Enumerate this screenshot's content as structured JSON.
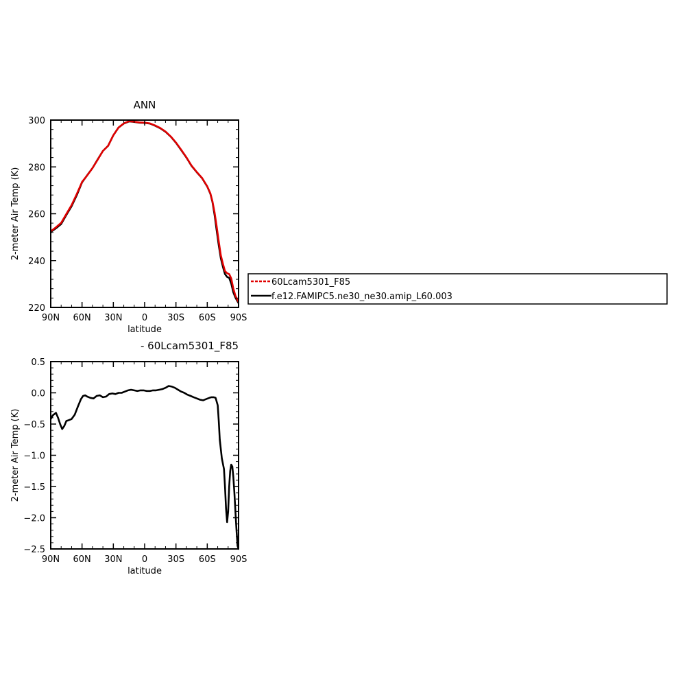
{
  "colors": {
    "series_red": "#e00000",
    "series_black": "#000000",
    "axis": "#000000"
  },
  "chart_data": [
    {
      "type": "line",
      "title": "ANN",
      "xlabel": "latitude",
      "ylabel": "2-meter Air Temp (K)",
      "xlim": [
        90,
        -90
      ],
      "ylim": [
        220,
        300
      ],
      "xticks": [
        {
          "value": 90,
          "label": "90N"
        },
        {
          "value": 60,
          "label": "60N"
        },
        {
          "value": 30,
          "label": "30N"
        },
        {
          "value": 0,
          "label": "0"
        },
        {
          "value": -30,
          "label": "30S"
        },
        {
          "value": -60,
          "label": "60S"
        },
        {
          "value": -90,
          "label": "90S"
        }
      ],
      "yticks": [
        {
          "value": 300,
          "label": "300"
        },
        {
          "value": 280,
          "label": "280"
        },
        {
          "value": 260,
          "label": "260"
        },
        {
          "value": 240,
          "label": "240"
        },
        {
          "value": 220,
          "label": "220"
        }
      ],
      "legend": {
        "placement": "right",
        "entries": [
          "60Lcam5301_F85",
          "f.e12.FAMIPC5.ne30_ne30.amip_L60.003"
        ]
      },
      "series": [
        {
          "name": "f.e12.FAMIPC5.ne30_ne30.amip_L60.003",
          "color": "#000000",
          "dash": "solid",
          "x": [
            90,
            85,
            80,
            75,
            70,
            65,
            60,
            55,
            50,
            45,
            40,
            35,
            30,
            25,
            20,
            15,
            10,
            5,
            0,
            -5,
            -10,
            -15,
            -20,
            -25,
            -30,
            -35,
            -40,
            -45,
            -50,
            -55,
            -60,
            -63,
            -65,
            -67,
            -69,
            -71,
            -73,
            -75,
            -77,
            -79,
            -81,
            -83,
            -85,
            -87,
            -90
          ],
          "values": [
            252.2,
            253.8,
            255.6,
            259.5,
            263.2,
            268.0,
            273.4,
            276.5,
            279.5,
            283.2,
            286.8,
            289.0,
            293.5,
            296.8,
            298.5,
            299.4,
            299.2,
            298.9,
            298.8,
            298.5,
            297.6,
            296.5,
            295.0,
            292.9,
            290.3,
            287.2,
            284.0,
            280.4,
            277.7,
            275.2,
            271.6,
            268.5,
            265.0,
            259.5,
            253.0,
            246.5,
            241.0,
            237.3,
            234.2,
            233.0,
            232.6,
            230.2,
            226.4,
            224.2,
            221.8
          ]
        },
        {
          "name": "60Lcam5301_F85",
          "color": "#e00000",
          "dash": "dashed",
          "x": [
            90,
            85,
            80,
            75,
            70,
            65,
            60,
            55,
            50,
            45,
            40,
            35,
            30,
            25,
            20,
            15,
            10,
            5,
            0,
            -5,
            -10,
            -15,
            -20,
            -25,
            -30,
            -35,
            -40,
            -45,
            -50,
            -55,
            -60,
            -63,
            -65,
            -67,
            -69,
            -71,
            -73,
            -75,
            -77,
            -79,
            -81,
            -83,
            -85,
            -87,
            -90
          ],
          "values": [
            252.5,
            254.2,
            256.1,
            259.9,
            263.7,
            268.5,
            273.6,
            276.4,
            279.5,
            283.1,
            286.8,
            289.0,
            293.5,
            296.8,
            298.6,
            299.5,
            299.3,
            299.0,
            298.9,
            298.6,
            297.7,
            296.6,
            295.1,
            293.0,
            290.4,
            287.3,
            284.1,
            280.5,
            277.8,
            275.3,
            271.7,
            268.7,
            265.3,
            260.6,
            254.7,
            248.2,
            242.3,
            238.6,
            235.5,
            234.6,
            234.2,
            232.4,
            228.0,
            225.0,
            222.3
          ]
        }
      ]
    },
    {
      "type": "line",
      "title": "- 60Lcam5301_F85",
      "xlabel": "latitude",
      "ylabel": "2-meter Air Temp (K)",
      "xlim": [
        90,
        -90
      ],
      "ylim": [
        -2.5,
        0.5
      ],
      "xticks": [
        {
          "value": 90,
          "label": "90N"
        },
        {
          "value": 60,
          "label": "60N"
        },
        {
          "value": 30,
          "label": "30N"
        },
        {
          "value": 0,
          "label": "0"
        },
        {
          "value": -30,
          "label": "30S"
        },
        {
          "value": -60,
          "label": "60S"
        },
        {
          "value": -90,
          "label": "90S"
        }
      ],
      "yticks": [
        {
          "value": 0.5,
          "label": "0.5"
        },
        {
          "value": 0.0,
          "label": "0.0"
        },
        {
          "value": -0.5,
          "label": "−0.5"
        },
        {
          "value": -1.0,
          "label": "−1.0"
        },
        {
          "value": -1.5,
          "label": "−1.5"
        },
        {
          "value": -2.0,
          "label": "−2.0"
        },
        {
          "value": -2.5,
          "label": "−2.5"
        }
      ],
      "series": [
        {
          "color": "#000000",
          "dash": "solid",
          "x": [
            90,
            88,
            85,
            83,
            81,
            79,
            77,
            75,
            73,
            70,
            67,
            64,
            61,
            59,
            57,
            55,
            52,
            49,
            46,
            43,
            40,
            37,
            34,
            31,
            28,
            25,
            22,
            19,
            16,
            13,
            10,
            7,
            4,
            1,
            -2,
            -5,
            -8,
            -11,
            -14,
            -17,
            -20,
            -23,
            -26,
            -29,
            -32,
            -35,
            -38,
            -41,
            -44,
            -47,
            -50,
            -53,
            -56,
            -59,
            -62,
            -64,
            -66,
            -68,
            -70,
            -71,
            -72,
            -74,
            -76,
            -77,
            -78,
            -79,
            -80,
            -81,
            -82,
            -83,
            -84,
            -85,
            -86,
            -87,
            -88,
            -89,
            -90
          ],
          "values": [
            -0.42,
            -0.36,
            -0.32,
            -0.4,
            -0.5,
            -0.58,
            -0.53,
            -0.45,
            -0.44,
            -0.42,
            -0.35,
            -0.22,
            -0.1,
            -0.05,
            -0.04,
            -0.06,
            -0.08,
            -0.09,
            -0.05,
            -0.04,
            -0.07,
            -0.06,
            -0.02,
            -0.01,
            -0.02,
            0.0,
            0.0,
            0.02,
            0.04,
            0.05,
            0.04,
            0.03,
            0.04,
            0.04,
            0.03,
            0.03,
            0.04,
            0.04,
            0.05,
            0.06,
            0.08,
            0.11,
            0.1,
            0.08,
            0.05,
            0.02,
            0.0,
            -0.03,
            -0.05,
            -0.07,
            -0.09,
            -0.11,
            -0.12,
            -0.1,
            -0.08,
            -0.07,
            -0.07,
            -0.08,
            -0.2,
            -0.45,
            -0.75,
            -1.05,
            -1.22,
            -1.5,
            -1.85,
            -2.07,
            -1.9,
            -1.5,
            -1.25,
            -1.15,
            -1.18,
            -1.35,
            -1.6,
            -1.9,
            -2.2,
            -2.45,
            -2.5
          ]
        }
      ]
    }
  ]
}
